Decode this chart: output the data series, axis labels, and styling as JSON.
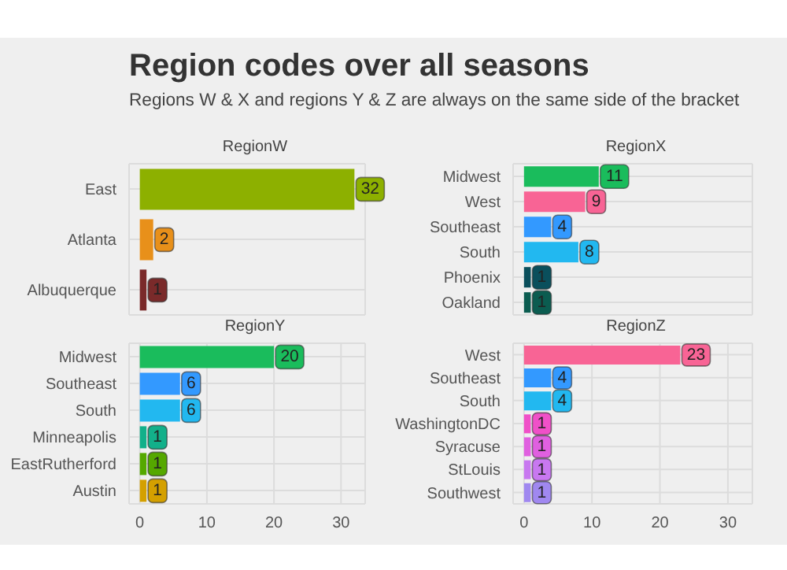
{
  "chart_data": [
    {
      "type": "other",
      "title": "Region codes over all seasons",
      "subtitle": "Regions W & X and regions Y & Z are always on the same side of the bracket"
    },
    {
      "type": "bar",
      "orientation": "horizontal",
      "title": "RegionW",
      "categories": [
        "East",
        "Atlanta",
        "Albuquerque"
      ],
      "values": [
        32,
        2,
        1
      ],
      "colors": [
        "#8db000",
        "#e8901a",
        "#7a2a2a"
      ],
      "xlim": [
        -1.6,
        33.6
      ],
      "xticks": [
        0,
        10,
        20,
        30
      ],
      "grid": true,
      "data_labels": true,
      "tick_labels": "y"
    },
    {
      "type": "bar",
      "orientation": "horizontal",
      "title": "RegionX",
      "categories": [
        "Midwest",
        "West",
        "Southeast",
        "South",
        "Phoenix",
        "Oakland"
      ],
      "values": [
        11,
        9,
        4,
        8,
        1,
        1
      ],
      "colors": [
        "#1abc5c",
        "#f86495",
        "#3399ff",
        "#22b8f0",
        "#0a4f5c",
        "#0b5c50"
      ],
      "xlim": [
        -1.6,
        33.6
      ],
      "xticks": [
        0,
        10,
        20,
        30
      ],
      "grid": true,
      "data_labels": true,
      "tick_labels": "y"
    },
    {
      "type": "bar",
      "orientation": "horizontal",
      "title": "RegionY",
      "categories": [
        "Midwest",
        "Southeast",
        "South",
        "Minneapolis",
        "EastRutherford",
        "Austin"
      ],
      "values": [
        20,
        6,
        6,
        1,
        1,
        1
      ],
      "colors": [
        "#1abc5c",
        "#3399ff",
        "#22b8f0",
        "#12b08a",
        "#55a800",
        "#d4a000"
      ],
      "xlim": [
        -1.6,
        33.6
      ],
      "xticks": [
        0,
        10,
        20,
        30
      ],
      "grid": true,
      "data_labels": true
    },
    {
      "type": "bar",
      "orientation": "horizontal",
      "title": "RegionZ",
      "categories": [
        "West",
        "Southeast",
        "South",
        "WashingtonDC",
        "Syracuse",
        "StLouis",
        "Southwest"
      ],
      "values": [
        23,
        4,
        4,
        1,
        1,
        1,
        1
      ],
      "colors": [
        "#f86495",
        "#3399ff",
        "#22b8f0",
        "#f050c8",
        "#e060e0",
        "#c878f0",
        "#a088f0"
      ],
      "xlim": [
        -1.6,
        33.6
      ],
      "xticks": [
        0,
        10,
        20,
        30
      ],
      "grid": true,
      "data_labels": true
    }
  ]
}
